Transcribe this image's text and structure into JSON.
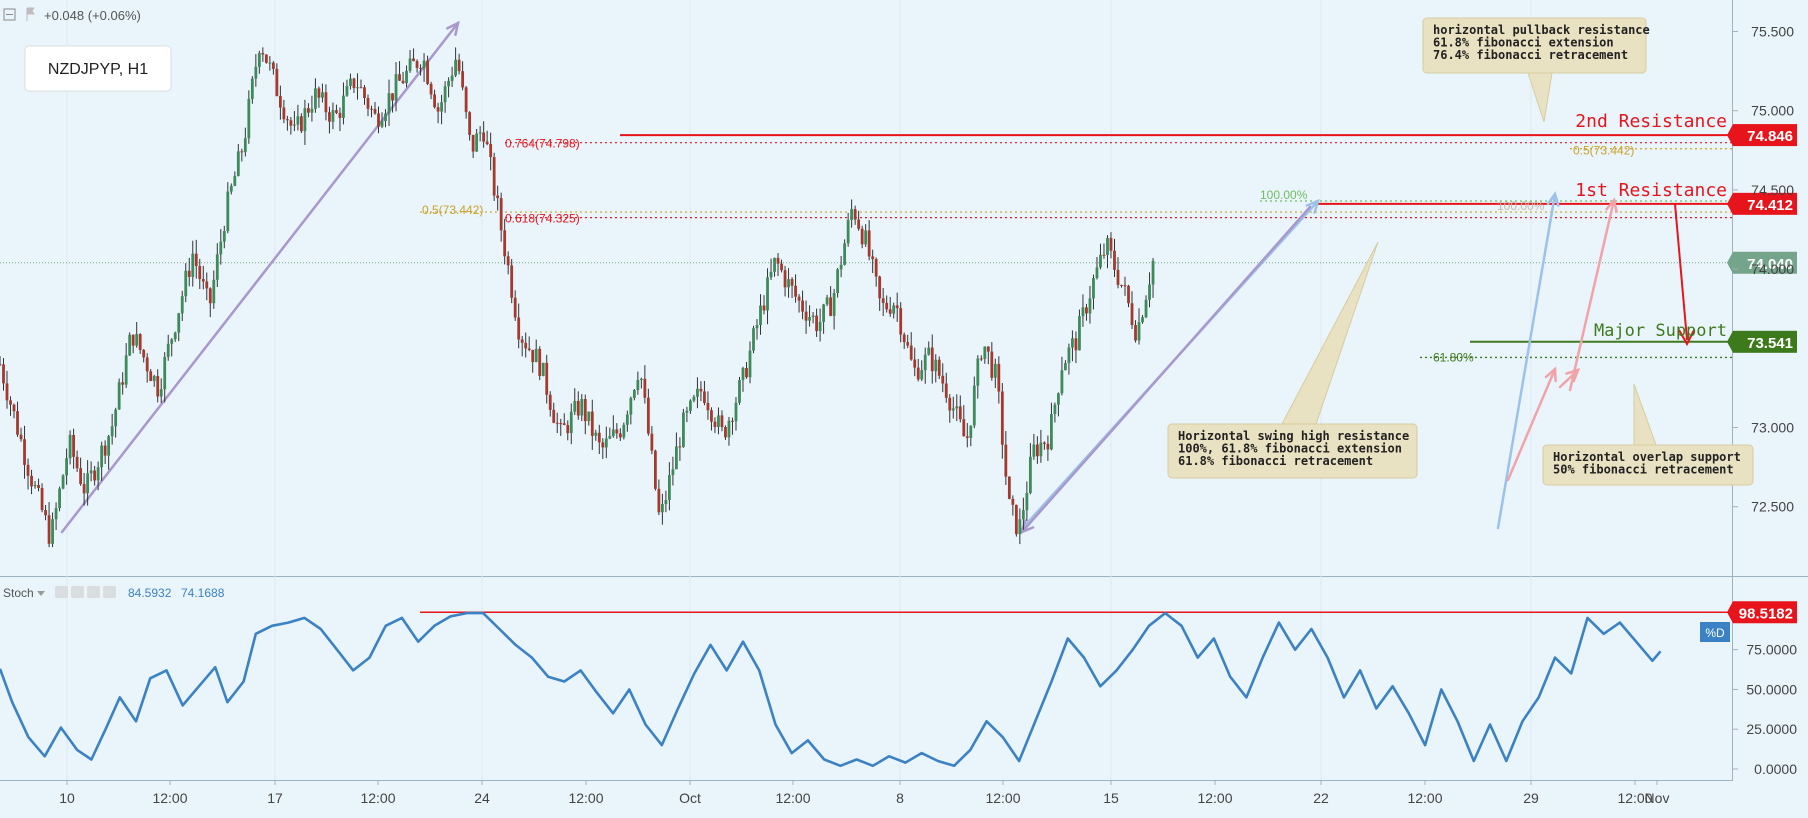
{
  "header": {
    "change_text": "+0.048 (+0.06%)",
    "symbol_label": "NZDJPYP, H1"
  },
  "colors": {
    "background": "#eaf4fb",
    "up_candle": "#3d8b5a",
    "down_candle": "#a33a2e",
    "resistance": "#e8141c",
    "support": "#3d7a1c",
    "current_price": "#74a58a",
    "fib_gold": "#c9a227",
    "fib_green": "#6fbf5f",
    "stoch_line": "#3b82c4",
    "callout_bg": "#e9e2c2",
    "arrow_purple": "#a898cc",
    "arrow_blue": "#9cc2ec",
    "arrow_pink": "#f2a3a8"
  },
  "chart_data": [
    {
      "type": "candlestick",
      "symbol": "NZDJPYP",
      "timeframe": "H1",
      "ylim": [
        72.0,
        75.7
      ],
      "y_ticks": [
        "75.500",
        "75.000",
        "74.500",
        "74.000",
        "73.000",
        "72.500"
      ],
      "x_ticks": [
        "10",
        "12:00",
        "17",
        "12:00",
        "24",
        "12:00",
        "Oct",
        "12:00",
        "8",
        "12:00",
        "15",
        "12:00",
        "22",
        "12:00",
        "29",
        "12:00",
        "Nov"
      ],
      "close_path": [
        [
          0,
          73.4
        ],
        [
          1.5,
          72.7
        ],
        [
          2.5,
          72.3
        ],
        [
          3.4,
          72.9
        ],
        [
          4.2,
          72.6
        ],
        [
          5.5,
          73.0
        ],
        [
          6.5,
          73.6
        ],
        [
          7.8,
          73.25
        ],
        [
          8.6,
          73.65
        ],
        [
          9.5,
          74.1
        ],
        [
          10.3,
          73.75
        ],
        [
          11.1,
          74.35
        ],
        [
          12.0,
          74.8
        ],
        [
          12.8,
          75.45
        ],
        [
          13.6,
          75.15
        ],
        [
          14.5,
          74.85
        ],
        [
          15.5,
          75.1
        ],
        [
          16.5,
          74.95
        ],
        [
          17.5,
          75.2
        ],
        [
          18.5,
          74.95
        ],
        [
          19.5,
          75.15
        ],
        [
          20.8,
          75.35
        ],
        [
          21.6,
          75.0
        ],
        [
          22.5,
          75.35
        ],
        [
          23.2,
          74.75
        ],
        [
          23.8,
          74.9
        ],
        [
          24.7,
          74.25
        ],
        [
          25.6,
          73.6
        ],
        [
          26.6,
          73.4
        ],
        [
          27.6,
          72.95
        ],
        [
          28.6,
          73.15
        ],
        [
          29.6,
          72.85
        ],
        [
          30.6,
          73.0
        ],
        [
          31.5,
          73.4
        ],
        [
          32.5,
          72.4
        ],
        [
          33.6,
          73.0
        ],
        [
          34.6,
          73.25
        ],
        [
          35.6,
          72.95
        ],
        [
          36.6,
          73.3
        ],
        [
          37.4,
          73.7
        ],
        [
          38.2,
          74.05
        ],
        [
          39.3,
          73.8
        ],
        [
          40.3,
          73.65
        ],
        [
          41.0,
          73.8
        ],
        [
          42.0,
          74.4
        ],
        [
          42.7,
          74.15
        ],
        [
          43.4,
          73.75
        ],
        [
          44.1,
          73.8
        ],
        [
          45.0,
          73.35
        ],
        [
          45.8,
          73.45
        ],
        [
          46.6,
          73.25
        ],
        [
          47.6,
          72.9
        ],
        [
          48.4,
          73.55
        ],
        [
          49.1,
          73.3
        ],
        [
          49.7,
          72.5
        ],
        [
          50.2,
          72.35
        ],
        [
          50.9,
          72.85
        ],
        [
          51.7,
          72.95
        ],
        [
          52.3,
          73.4
        ],
        [
          53.0,
          73.55
        ],
        [
          53.8,
          73.9
        ],
        [
          54.5,
          74.15
        ],
        [
          55.4,
          73.85
        ],
        [
          56.0,
          73.6
        ],
        [
          56.8,
          74.05
        ]
      ],
      "annotations": [
        {
          "label": "2nd Resistance",
          "value": "74.846"
        },
        {
          "label": "1st Resistance",
          "value": "74.412"
        },
        {
          "label": "Major Support",
          "value": "73.541"
        },
        {
          "label": "current price",
          "value": "74.040"
        },
        {
          "label": "0.764(74.798)"
        },
        {
          "label": "0.618(74.325)"
        },
        {
          "label": "0.5(73.442)"
        },
        {
          "label": "61.80%"
        },
        {
          "label": "100.00%"
        },
        {
          "label": "100.00%"
        }
      ],
      "callouts": [
        {
          "lines": [
            "horizontal pullback resistance",
            "61.8% fibonacci extension",
            "76.4% fibonacci retracement"
          ]
        },
        {
          "lines": [
            "Horizontal swing high resistance",
            "100%, 61.8% fibonacci extension",
            "61.8% fibonacci retracement"
          ]
        },
        {
          "lines": [
            "Horizontal overlap support",
            "50% fibonacci retracement"
          ]
        }
      ]
    },
    {
      "type": "line",
      "indicator": "Stoch",
      "values_text": [
        "84.5932",
        "74.1688"
      ],
      "ylim": [
        0,
        100
      ],
      "y_ticks": [
        "75.0000",
        "50.0000",
        "25.0000",
        "0.0000"
      ],
      "level_label": "98.5182",
      "series_label": "%D",
      "stoch_points": [
        [
          0,
          63
        ],
        [
          0.6,
          42
        ],
        [
          1.4,
          20
        ],
        [
          2.2,
          8
        ],
        [
          3.0,
          26
        ],
        [
          3.8,
          12
        ],
        [
          4.5,
          6
        ],
        [
          5.2,
          25
        ],
        [
          5.9,
          45
        ],
        [
          6.7,
          30
        ],
        [
          7.4,
          57
        ],
        [
          8.2,
          62
        ],
        [
          9.0,
          40
        ],
        [
          9.8,
          52
        ],
        [
          10.6,
          64
        ],
        [
          11.2,
          42
        ],
        [
          12.0,
          55
        ],
        [
          12.6,
          85
        ],
        [
          13.4,
          90
        ],
        [
          14.2,
          92
        ],
        [
          15.0,
          95
        ],
        [
          15.8,
          88
        ],
        [
          16.6,
          75
        ],
        [
          17.4,
          62
        ],
        [
          18.2,
          70
        ],
        [
          19.0,
          90
        ],
        [
          19.8,
          95
        ],
        [
          20.6,
          80
        ],
        [
          21.4,
          90
        ],
        [
          22.2,
          96
        ],
        [
          23.0,
          98
        ],
        [
          23.8,
          98
        ],
        [
          24.6,
          88
        ],
        [
          25.4,
          78
        ],
        [
          26.2,
          70
        ],
        [
          27.0,
          58
        ],
        [
          27.8,
          55
        ],
        [
          28.6,
          62
        ],
        [
          29.4,
          48
        ],
        [
          30.2,
          35
        ],
        [
          31.0,
          50
        ],
        [
          31.8,
          28
        ],
        [
          32.6,
          15
        ],
        [
          33.4,
          38
        ],
        [
          34.2,
          60
        ],
        [
          35.0,
          78
        ],
        [
          35.8,
          62
        ],
        [
          36.6,
          80
        ],
        [
          37.4,
          62
        ],
        [
          38.2,
          28
        ],
        [
          39.0,
          10
        ],
        [
          39.8,
          18
        ],
        [
          40.6,
          6
        ],
        [
          41.4,
          2
        ],
        [
          42.2,
          6
        ],
        [
          43.0,
          2
        ],
        [
          43.8,
          8
        ],
        [
          44.6,
          4
        ],
        [
          45.4,
          10
        ],
        [
          46.2,
          5
        ],
        [
          47.0,
          2
        ],
        [
          47.8,
          12
        ],
        [
          48.6,
          30
        ],
        [
          49.4,
          20
        ],
        [
          50.2,
          5
        ],
        [
          51.0,
          30
        ],
        [
          51.8,
          55
        ],
        [
          52.6,
          82
        ],
        [
          53.4,
          70
        ],
        [
          54.2,
          52
        ],
        [
          55.0,
          62
        ],
        [
          55.8,
          75
        ],
        [
          56.6,
          90
        ],
        [
          57.4,
          98
        ],
        [
          58.2,
          90
        ],
        [
          59.0,
          70
        ],
        [
          59.8,
          82
        ],
        [
          60.6,
          58
        ],
        [
          61.4,
          45
        ],
        [
          62.2,
          70
        ],
        [
          63.0,
          92
        ],
        [
          63.8,
          75
        ],
        [
          64.6,
          88
        ],
        [
          65.4,
          70
        ],
        [
          66.2,
          45
        ],
        [
          67.0,
          62
        ],
        [
          67.8,
          38
        ],
        [
          68.6,
          52
        ],
        [
          69.4,
          35
        ],
        [
          70.2,
          15
        ],
        [
          71.0,
          50
        ],
        [
          71.8,
          30
        ],
        [
          72.6,
          5
        ],
        [
          73.4,
          28
        ],
        [
          74.2,
          5
        ],
        [
          75.0,
          30
        ],
        [
          75.8,
          45
        ],
        [
          76.6,
          70
        ],
        [
          77.4,
          60
        ],
        [
          78.2,
          95
        ],
        [
          79.0,
          85
        ],
        [
          79.8,
          92
        ],
        [
          80.6,
          80
        ],
        [
          81.4,
          68
        ],
        [
          81.8,
          74
        ]
      ]
    }
  ]
}
